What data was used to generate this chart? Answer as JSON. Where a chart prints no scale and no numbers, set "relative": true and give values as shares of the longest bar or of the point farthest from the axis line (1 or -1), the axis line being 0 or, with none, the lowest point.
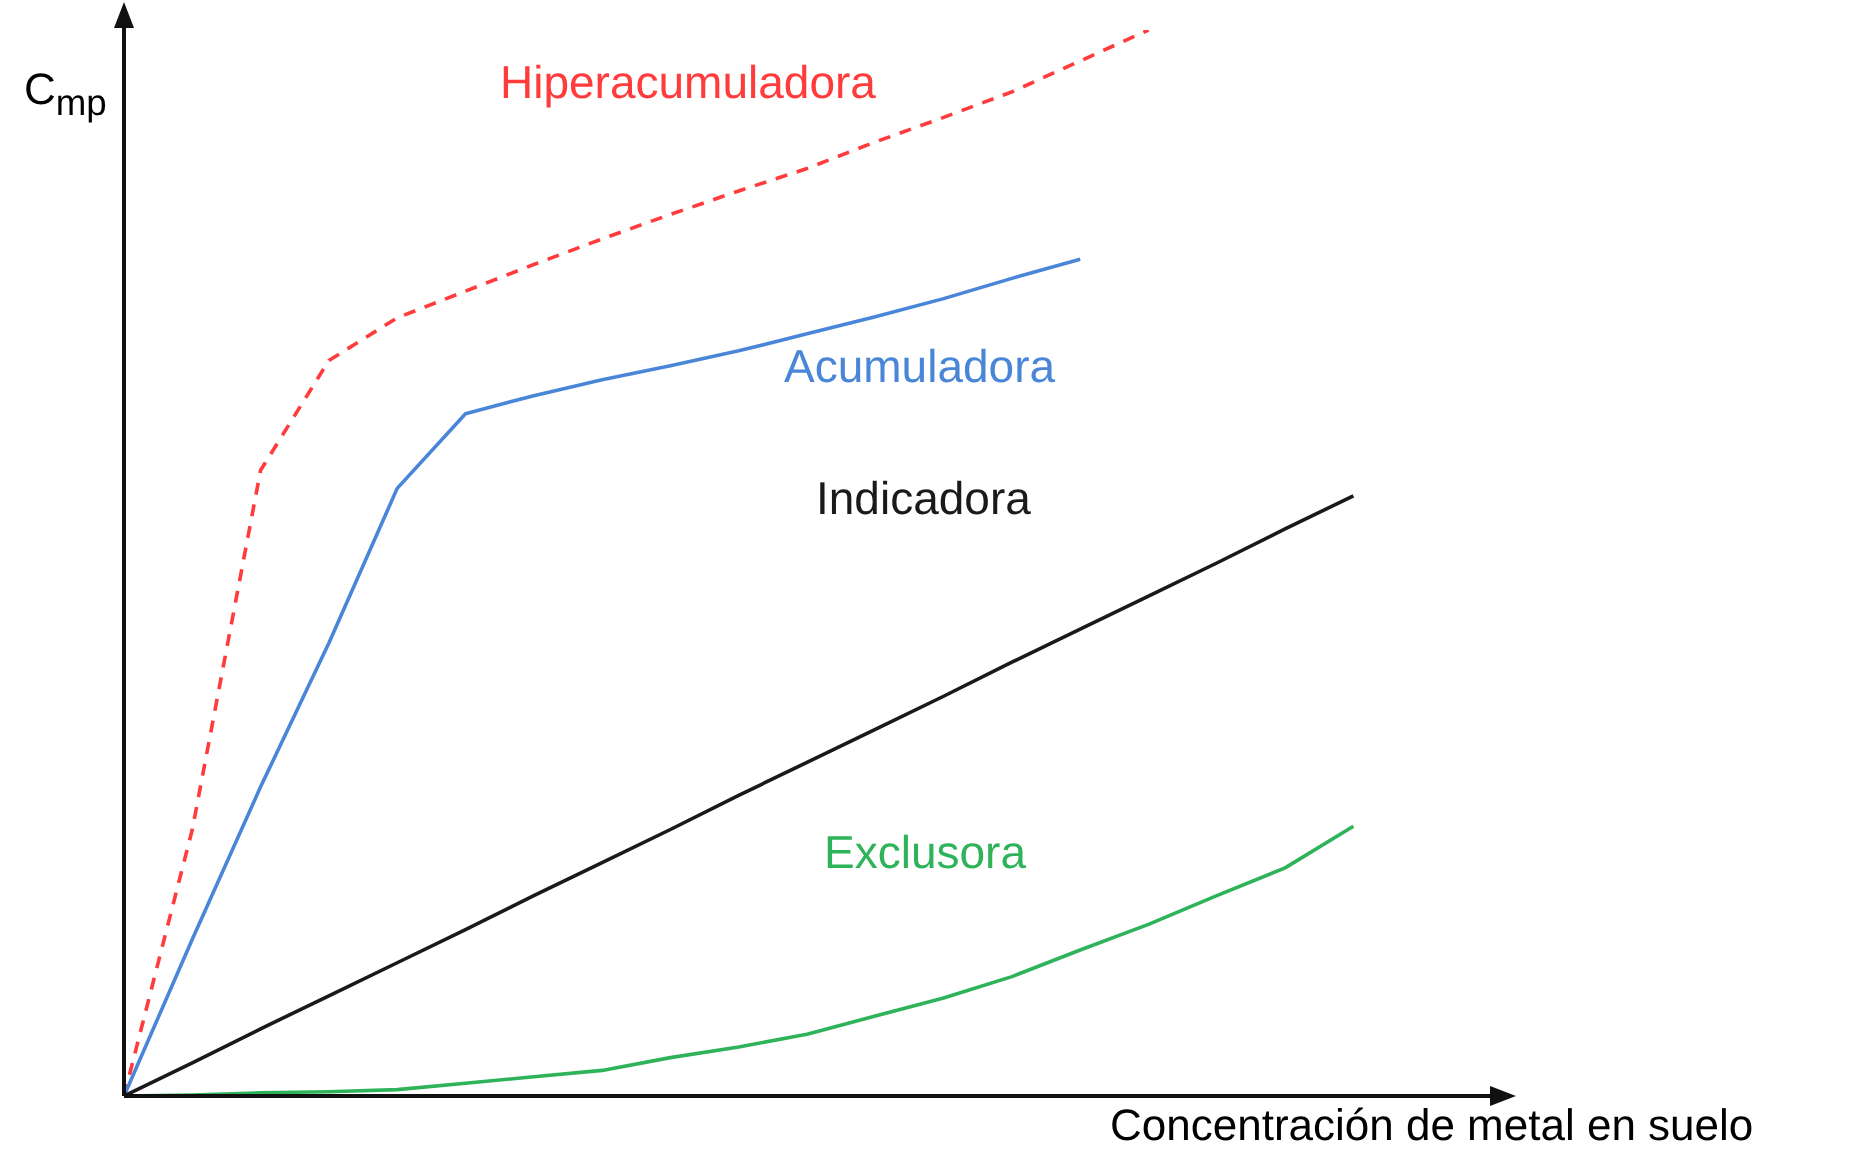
{
  "chart_data": {
    "type": "line",
    "relative": true,
    "xlabel": "Concentración de metal en suelo",
    "ylabel": "C$_{mp}$",
    "marker": "none",
    "categories": [
      null,
      null,
      null,
      null,
      null,
      null,
      null,
      null,
      null,
      null,
      null,
      null,
      null,
      null,
      null,
      null,
      null,
      null,
      null,
      null
    ],
    "series": [
      {
        "name": "Hiperacumuladora",
        "color": "#ff3b3b",
        "line_style": "dashed",
        "values": [
          0,
          0.25,
          0.587,
          0.69,
          0.73,
          0.755,
          0.78,
          0.804,
          0.827,
          0.849,
          0.87,
          0.895,
          0.918,
          0.942,
          0.971,
          1,
          null,
          null,
          null,
          null
        ]
      },
      {
        "name": "Acumuladora",
        "color": "#4a86d8",
        "line_style": "solid",
        "values": [
          0,
          0.147,
          0.29,
          0.425,
          0.57,
          0.64,
          0.657,
          0.672,
          0.685,
          0.699,
          0.715,
          0.731,
          0.748,
          0.767,
          0.785,
          null,
          null,
          null,
          null,
          null
        ]
      },
      {
        "name": "Indicadora",
        "color": "#1a1a1a",
        "line_style": "solid",
        "values": [
          0,
          0.031,
          0.063,
          0.094,
          0.125,
          0.156,
          0.188,
          0.219,
          0.25,
          0.282,
          0.313,
          0.344,
          0.375,
          0.407,
          0.438,
          0.469,
          0.5,
          0.532,
          0.563,
          null
        ]
      },
      {
        "name": "Exclusora",
        "color": "#2fb35a",
        "line_style": "solid",
        "values": [
          0,
          0.001,
          0.003,
          0.004,
          0.006,
          0.012,
          0.018,
          0.024,
          0.036,
          0.046,
          0.058,
          0.075,
          0.092,
          0.112,
          0.137,
          0.161,
          0.188,
          0.214,
          0.253,
          null
        ]
      }
    ]
  }
}
